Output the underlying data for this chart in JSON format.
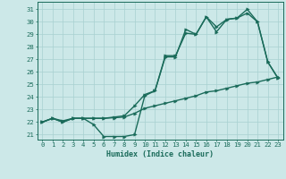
{
  "xlabel": "Humidex (Indice chaleur)",
  "bg_color": "#cce8e8",
  "line_color": "#1a6b5a",
  "xlim": [
    -0.5,
    23.5
  ],
  "ylim": [
    20.6,
    31.6
  ],
  "xticks": [
    0,
    1,
    2,
    3,
    4,
    5,
    6,
    7,
    8,
    9,
    10,
    11,
    12,
    13,
    14,
    15,
    16,
    17,
    18,
    19,
    20,
    21,
    22,
    23
  ],
  "yticks": [
    21,
    22,
    23,
    24,
    25,
    26,
    27,
    28,
    29,
    30,
    31
  ],
  "line1_x": [
    0,
    1,
    2,
    3,
    4,
    5,
    6,
    7,
    8,
    9,
    10,
    11,
    12,
    13,
    14,
    15,
    16,
    17,
    18,
    19,
    20,
    21,
    22,
    23
  ],
  "line1_y": [
    22.0,
    22.3,
    22.0,
    22.3,
    22.3,
    21.8,
    20.85,
    20.85,
    20.85,
    21.0,
    24.1,
    24.5,
    27.2,
    27.2,
    29.4,
    29.0,
    30.4,
    29.2,
    30.2,
    30.3,
    31.0,
    30.0,
    26.8,
    25.5
  ],
  "line2_x": [
    0,
    1,
    2,
    3,
    4,
    5,
    6,
    7,
    8,
    9,
    10,
    11,
    12,
    13,
    14,
    15,
    16,
    17,
    18,
    19,
    20,
    21,
    22,
    23
  ],
  "line2_y": [
    22.0,
    22.3,
    22.0,
    22.3,
    22.3,
    22.3,
    22.3,
    22.35,
    22.4,
    22.7,
    23.1,
    23.3,
    23.5,
    23.7,
    23.9,
    24.1,
    24.4,
    24.5,
    24.7,
    24.9,
    25.1,
    25.2,
    25.4,
    25.6
  ],
  "line3_x": [
    0,
    1,
    2,
    3,
    4,
    5,
    6,
    7,
    8,
    9,
    10,
    11,
    12,
    13,
    14,
    15,
    16,
    17,
    18,
    19,
    20,
    21,
    22,
    23
  ],
  "line3_y": [
    22.0,
    22.3,
    22.1,
    22.3,
    22.3,
    22.3,
    22.3,
    22.4,
    22.5,
    23.3,
    24.2,
    24.5,
    27.3,
    27.3,
    29.1,
    29.0,
    30.4,
    29.6,
    30.2,
    30.3,
    30.7,
    30.0,
    26.8,
    25.5
  ],
  "grid_color": "#a8d0d0",
  "markersize": 2.5,
  "linewidth": 1.0,
  "tick_fontsize": 5.2,
  "xlabel_fontsize": 6.0
}
